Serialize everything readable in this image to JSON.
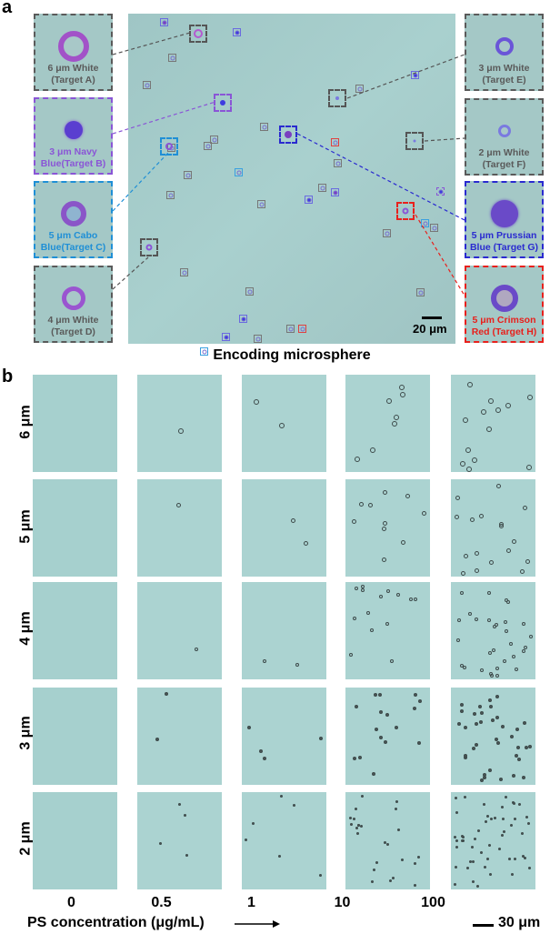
{
  "panel_a": {
    "letter": "a",
    "title": "Encoding microsphere",
    "scale_bar": "20 μm",
    "callouts": [
      {
        "id": "A",
        "line1": "6 μm White",
        "line2": "(Target A)",
        "color": "#5a5a5a",
        "size_um": 6
      },
      {
        "id": "B",
        "line1": "3 μm Navy",
        "line2": "Blue(Target B)",
        "color": "#8a55d6",
        "size_um": 3
      },
      {
        "id": "C",
        "line1": "5 μm Cabo",
        "line2": "Blue(Target C)",
        "color": "#1f8fd6",
        "size_um": 5
      },
      {
        "id": "D",
        "line1": "4 μm White",
        "line2": "(Target D)",
        "color": "#5a5a5a",
        "size_um": 4
      },
      {
        "id": "E",
        "line1": "3 μm White",
        "line2": "(Target E)",
        "color": "#5a5a5a",
        "size_um": 3
      },
      {
        "id": "F",
        "line1": "2 μm White",
        "line2": "(Target F)",
        "color": "#5a5a5a",
        "size_um": 2
      },
      {
        "id": "G",
        "line1": "5 μm Prussian",
        "line2": "Blue (Target G)",
        "color": "#2a2ad0",
        "size_um": 5
      },
      {
        "id": "H",
        "line1": "5 μm Crimson",
        "line2": "Red (Target H)",
        "color": "#e8201c",
        "size_um": 5
      }
    ]
  },
  "panel_b": {
    "letter": "b",
    "row_labels": [
      "6 μm",
      "5 μm",
      "4 μm",
      "3 μm",
      "2 μm"
    ],
    "column_labels": [
      "0",
      "0.5",
      "1",
      "10",
      "100"
    ],
    "xlabel": "PS concentration (μg/mL)",
    "scale_bar": "30 μm"
  }
}
